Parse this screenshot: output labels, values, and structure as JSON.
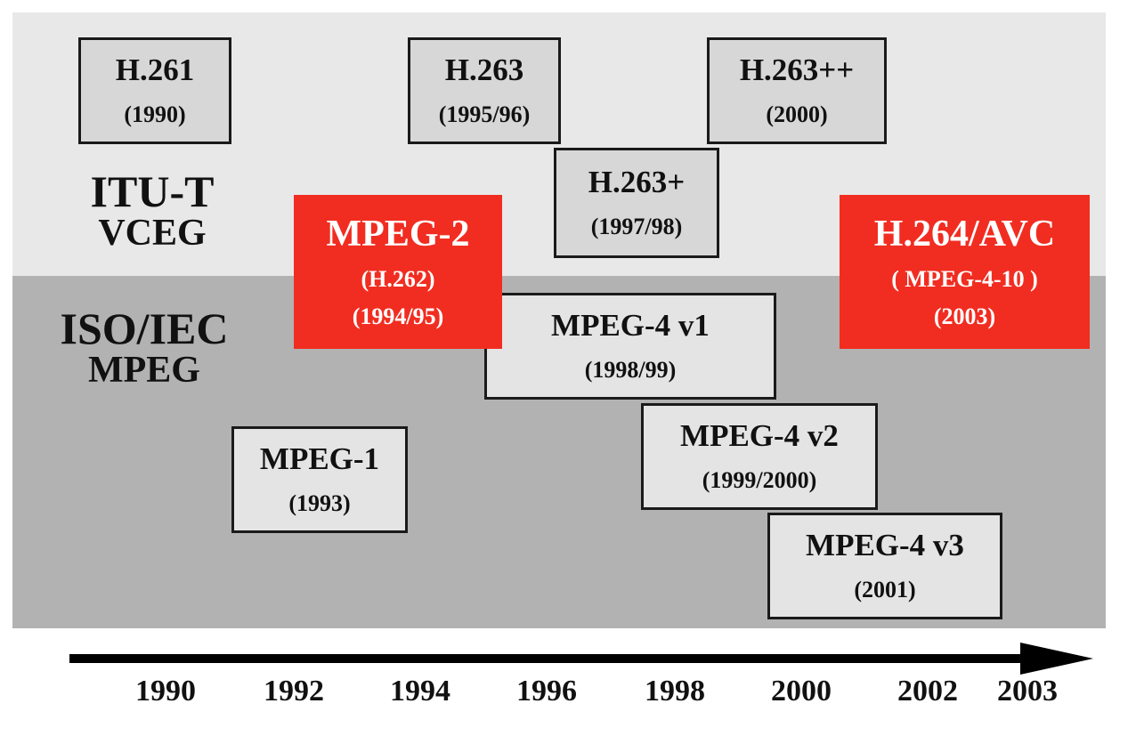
{
  "colors": {
    "top_band": "#e8e8e8",
    "bottom_band": "#b2b2b2",
    "highlight": "#f12d21",
    "box": "#e4e4e4",
    "axis": "#000000"
  },
  "bands": {
    "itu": {
      "line1": "ITU-T",
      "line2": "VCEG"
    },
    "iso": {
      "line1": "ISO/IEC",
      "line2": "MPEG"
    }
  },
  "standards": {
    "h261": {
      "name": "H.261",
      "year": "(1990)"
    },
    "h263": {
      "name": "H.263",
      "year": "(1995/96)"
    },
    "h263pp": {
      "name": "H.263++",
      "year": "(2000)"
    },
    "h263p": {
      "name": "H.263+",
      "year": "(1997/98)"
    },
    "mpeg2": {
      "name": "MPEG-2",
      "alt": "(H.262)",
      "year": "(1994/95)"
    },
    "h264": {
      "name": "H.264/AVC",
      "alt": "( MPEG-4-10 )",
      "year": "(2003)"
    },
    "mpeg4v1": {
      "name": "MPEG-4 v1",
      "year": "(1998/99)"
    },
    "mpeg4v2": {
      "name": "MPEG-4 v2",
      "year": "(1999/2000)"
    },
    "mpeg4v3": {
      "name": "MPEG-4 v3",
      "year": "(2001)"
    },
    "mpeg1": {
      "name": "MPEG-1",
      "year": "(1993)"
    }
  },
  "timeline": {
    "labels": [
      "1990",
      "1992",
      "1994",
      "1996",
      "1998",
      "2000",
      "2002",
      "2003"
    ]
  }
}
